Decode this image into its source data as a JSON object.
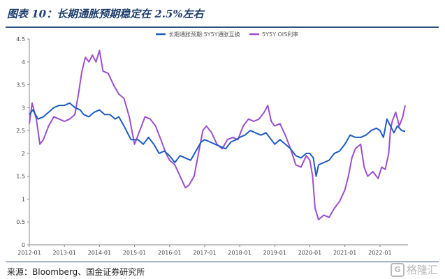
{
  "title": "图表 10：长期通胀预期稳定在 2.5%左右",
  "source": "来源：Bloomberg、国金证券研究所",
  "watermark": "格隆汇",
  "watermark_logo": "G",
  "colors": {
    "series1": "#1f5bc6",
    "series2": "#9a4fcf",
    "axis": "#888888",
    "title": "#1f3f6e"
  },
  "chart_data": {
    "type": "line",
    "title": "",
    "xlabel": "",
    "ylabel": "",
    "ylim": [
      0,
      4.5
    ],
    "yticks": [
      "0",
      "0.5",
      "1",
      "1.5",
      "2",
      "2.5",
      "3",
      "3.5",
      "4",
      "4.5"
    ],
    "xlim": [
      2012.0,
      2022.8
    ],
    "xticks": [
      {
        "label": "2012-01",
        "x": 2012.0
      },
      {
        "label": "2013-01",
        "x": 2013.0
      },
      {
        "label": "2014-01",
        "x": 2014.0
      },
      {
        "label": "2015-01",
        "x": 2015.0
      },
      {
        "label": "2016-01",
        "x": 2016.0
      },
      {
        "label": "2017-01",
        "x": 2017.0
      },
      {
        "label": "2018-01",
        "x": 2018.0
      },
      {
        "label": "2019-01",
        "x": 2019.0
      },
      {
        "label": "2020-01",
        "x": 2020.0
      },
      {
        "label": "2021-01",
        "x": 2021.0
      },
      {
        "label": "2022-01",
        "x": 2022.0
      }
    ],
    "legend_position": "top",
    "series": [
      {
        "name": "长期通胀预期:5Y5Y通胀互换",
        "points": [
          [
            2012.0,
            2.85
          ],
          [
            2012.1,
            2.95
          ],
          [
            2012.25,
            2.75
          ],
          [
            2012.4,
            2.8
          ],
          [
            2012.55,
            2.9
          ],
          [
            2012.7,
            3.0
          ],
          [
            2012.85,
            3.05
          ],
          [
            2013.0,
            3.05
          ],
          [
            2013.15,
            3.1
          ],
          [
            2013.3,
            3.0
          ],
          [
            2013.45,
            2.95
          ],
          [
            2013.55,
            2.85
          ],
          [
            2013.7,
            2.8
          ],
          [
            2013.85,
            2.9
          ],
          [
            2014.0,
            2.95
          ],
          [
            2014.15,
            2.85
          ],
          [
            2014.3,
            2.85
          ],
          [
            2014.45,
            2.75
          ],
          [
            2014.55,
            2.8
          ],
          [
            2014.7,
            2.6
          ],
          [
            2014.8,
            2.45
          ],
          [
            2014.9,
            2.3
          ],
          [
            2015.0,
            2.3
          ],
          [
            2015.1,
            2.3
          ],
          [
            2015.25,
            2.2
          ],
          [
            2015.4,
            2.35
          ],
          [
            2015.55,
            2.2
          ],
          [
            2015.7,
            2.0
          ],
          [
            2015.85,
            2.05
          ],
          [
            2016.0,
            1.95
          ],
          [
            2016.15,
            1.8
          ],
          [
            2016.3,
            1.95
          ],
          [
            2016.45,
            1.9
          ],
          [
            2016.6,
            1.85
          ],
          [
            2016.75,
            2.05
          ],
          [
            2016.9,
            2.25
          ],
          [
            2017.0,
            2.3
          ],
          [
            2017.15,
            2.25
          ],
          [
            2017.3,
            2.2
          ],
          [
            2017.45,
            2.15
          ],
          [
            2017.6,
            2.1
          ],
          [
            2017.75,
            2.25
          ],
          [
            2017.9,
            2.3
          ],
          [
            2018.0,
            2.35
          ],
          [
            2018.15,
            2.4
          ],
          [
            2018.3,
            2.5
          ],
          [
            2018.45,
            2.45
          ],
          [
            2018.6,
            2.4
          ],
          [
            2018.75,
            2.45
          ],
          [
            2018.9,
            2.3
          ],
          [
            2019.0,
            2.2
          ],
          [
            2019.15,
            2.3
          ],
          [
            2019.3,
            2.2
          ],
          [
            2019.45,
            2.1
          ],
          [
            2019.6,
            1.95
          ],
          [
            2019.75,
            1.9
          ],
          [
            2019.9,
            2.0
          ],
          [
            2020.0,
            2.0
          ],
          [
            2020.1,
            1.9
          ],
          [
            2020.18,
            1.5
          ],
          [
            2020.25,
            1.75
          ],
          [
            2020.4,
            1.8
          ],
          [
            2020.55,
            1.85
          ],
          [
            2020.7,
            2.0
          ],
          [
            2020.85,
            2.05
          ],
          [
            2021.0,
            2.2
          ],
          [
            2021.15,
            2.4
          ],
          [
            2021.3,
            2.35
          ],
          [
            2021.45,
            2.35
          ],
          [
            2021.6,
            2.4
          ],
          [
            2021.75,
            2.5
          ],
          [
            2021.9,
            2.55
          ],
          [
            2022.0,
            2.5
          ],
          [
            2022.1,
            2.35
          ],
          [
            2022.2,
            2.75
          ],
          [
            2022.3,
            2.6
          ],
          [
            2022.4,
            2.45
          ],
          [
            2022.5,
            2.6
          ],
          [
            2022.62,
            2.5
          ],
          [
            2022.72,
            2.48
          ]
        ]
      },
      {
        "name": "5Y5Y OIS利率",
        "points": [
          [
            2012.0,
            2.65
          ],
          [
            2012.08,
            3.1
          ],
          [
            2012.2,
            2.75
          ],
          [
            2012.3,
            2.2
          ],
          [
            2012.4,
            2.3
          ],
          [
            2012.55,
            2.6
          ],
          [
            2012.7,
            2.8
          ],
          [
            2012.85,
            2.75
          ],
          [
            2013.0,
            2.7
          ],
          [
            2013.15,
            2.75
          ],
          [
            2013.3,
            2.85
          ],
          [
            2013.4,
            3.3
          ],
          [
            2013.5,
            3.8
          ],
          [
            2013.6,
            4.1
          ],
          [
            2013.7,
            4.0
          ],
          [
            2013.8,
            4.15
          ],
          [
            2013.9,
            4.0
          ],
          [
            2014.0,
            4.25
          ],
          [
            2014.1,
            3.8
          ],
          [
            2014.25,
            3.75
          ],
          [
            2014.4,
            3.5
          ],
          [
            2014.55,
            3.3
          ],
          [
            2014.7,
            3.2
          ],
          [
            2014.85,
            2.8
          ],
          [
            2015.0,
            2.2
          ],
          [
            2015.15,
            2.5
          ],
          [
            2015.3,
            2.8
          ],
          [
            2015.45,
            2.75
          ],
          [
            2015.6,
            2.6
          ],
          [
            2015.75,
            2.3
          ],
          [
            2015.9,
            2.0
          ],
          [
            2016.0,
            1.85
          ],
          [
            2016.15,
            1.75
          ],
          [
            2016.3,
            1.5
          ],
          [
            2016.45,
            1.25
          ],
          [
            2016.55,
            1.3
          ],
          [
            2016.7,
            1.5
          ],
          [
            2016.85,
            2.1
          ],
          [
            2016.95,
            2.5
          ],
          [
            2017.05,
            2.6
          ],
          [
            2017.2,
            2.45
          ],
          [
            2017.35,
            2.2
          ],
          [
            2017.5,
            2.1
          ],
          [
            2017.65,
            2.3
          ],
          [
            2017.8,
            2.35
          ],
          [
            2017.95,
            2.3
          ],
          [
            2018.1,
            2.6
          ],
          [
            2018.25,
            2.75
          ],
          [
            2018.4,
            2.7
          ],
          [
            2018.55,
            2.75
          ],
          [
            2018.7,
            2.9
          ],
          [
            2018.8,
            3.05
          ],
          [
            2018.9,
            2.7
          ],
          [
            2019.0,
            2.6
          ],
          [
            2019.15,
            2.65
          ],
          [
            2019.3,
            2.4
          ],
          [
            2019.45,
            2.1
          ],
          [
            2019.6,
            1.75
          ],
          [
            2019.75,
            1.7
          ],
          [
            2019.9,
            1.95
          ],
          [
            2020.0,
            1.85
          ],
          [
            2020.08,
            1.5
          ],
          [
            2020.15,
            0.8
          ],
          [
            2020.25,
            0.55
          ],
          [
            2020.4,
            0.65
          ],
          [
            2020.55,
            0.6
          ],
          [
            2020.7,
            0.8
          ],
          [
            2020.85,
            0.95
          ],
          [
            2021.0,
            1.2
          ],
          [
            2021.1,
            1.5
          ],
          [
            2021.2,
            1.9
          ],
          [
            2021.3,
            2.1
          ],
          [
            2021.45,
            2.2
          ],
          [
            2021.55,
            1.7
          ],
          [
            2021.65,
            1.5
          ],
          [
            2021.8,
            1.6
          ],
          [
            2021.95,
            1.45
          ],
          [
            2022.05,
            1.7
          ],
          [
            2022.15,
            1.65
          ],
          [
            2022.25,
            2.0
          ],
          [
            2022.3,
            2.5
          ],
          [
            2022.35,
            2.7
          ],
          [
            2022.45,
            2.9
          ],
          [
            2022.55,
            2.6
          ],
          [
            2022.65,
            2.8
          ],
          [
            2022.72,
            3.05
          ]
        ]
      }
    ]
  }
}
